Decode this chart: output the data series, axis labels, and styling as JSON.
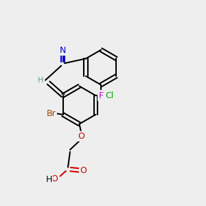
{
  "bg_color": "#eeeeee",
  "bond_color": "#000000",
  "bond_lw": 1.5,
  "font_size": 9,
  "atoms": {
    "N": {
      "color": "#0000cc",
      "label": "N"
    },
    "O": {
      "color": "#cc0000",
      "label": "O"
    },
    "F": {
      "color": "#cc00cc",
      "label": "F"
    },
    "Br": {
      "color": "#994400",
      "label": "Br"
    },
    "Cl": {
      "color": "#00aa00",
      "label": "Cl"
    },
    "H": {
      "color": "#669999",
      "label": "H"
    },
    "C": {
      "color": "#000000",
      "label": ""
    }
  }
}
